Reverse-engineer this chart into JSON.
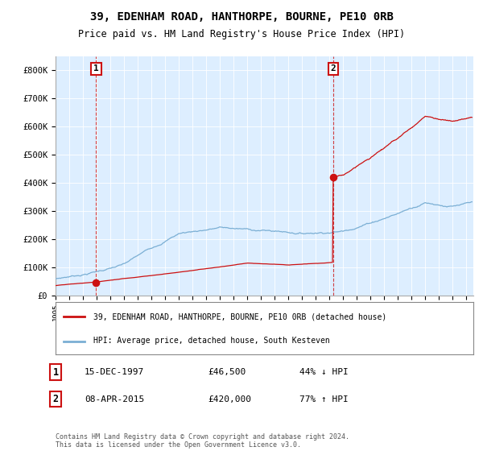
{
  "title": "39, EDENHAM ROAD, HANTHORPE, BOURNE, PE10 0RB",
  "subtitle": "Price paid vs. HM Land Registry's House Price Index (HPI)",
  "sale1_date": "15-DEC-1997",
  "sale1_price": 46500,
  "sale1_label": "44% ↓ HPI",
  "sale1_year": 1997.96,
  "sale2_date": "08-APR-2015",
  "sale2_price": 420000,
  "sale2_label": "77% ↑ HPI",
  "sale2_year": 2015.27,
  "legend_line1": "39, EDENHAM ROAD, HANTHORPE, BOURNE, PE10 0RB (detached house)",
  "legend_line2": "HPI: Average price, detached house, South Kesteven",
  "footer": "Contains HM Land Registry data © Crown copyright and database right 2024.\nThis data is licensed under the Open Government Licence v3.0.",
  "hpi_color": "#7bafd4",
  "property_color": "#cc1111",
  "vline_color": "#cc1111",
  "marker_color": "#cc1111",
  "chart_bg": "#ddeeff",
  "ylim_max": 850000,
  "xlim_min": 1995.0,
  "xlim_max": 2025.5,
  "background_color": "#ffffff"
}
